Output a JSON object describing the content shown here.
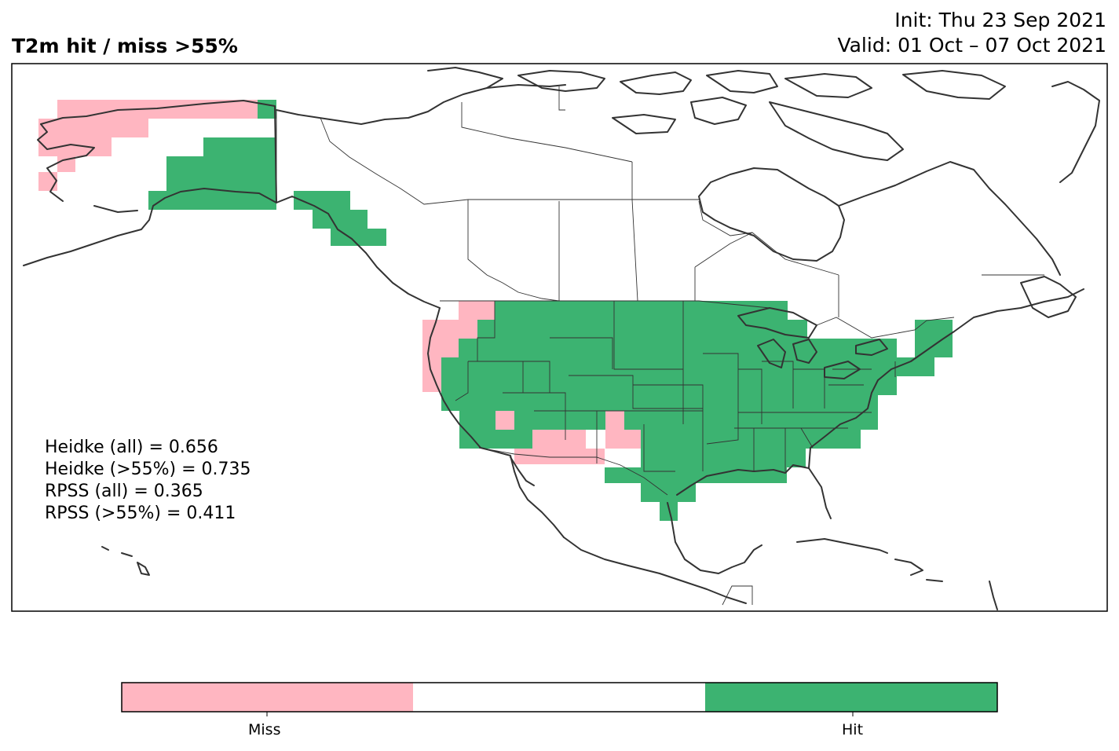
{
  "header": {
    "title": "T2m hit / miss  >55%",
    "init": "Init: Thu 23 Sep 2021",
    "valid": "Valid: 01 Oct – 07 Oct 2021"
  },
  "stats": {
    "heidke_all": "Heidke (all) = 0.656",
    "heidke_55": "Heidke (>55%) = 0.735",
    "rpss_all": "RPSS (all) = 0.365",
    "rpss_55": "RPSS (>55%) = 0.411"
  },
  "colorbar": {
    "segments": [
      {
        "label": "Miss",
        "color": "#ffb6c1"
      },
      {
        "label": "",
        "color": "#ffffff"
      },
      {
        "label": "Hit",
        "color": "#3cb371"
      }
    ]
  },
  "colors": {
    "miss": "#ffb6c1",
    "hit": "#3cb371",
    "coast": "#333333",
    "frame": "#000000"
  }
}
